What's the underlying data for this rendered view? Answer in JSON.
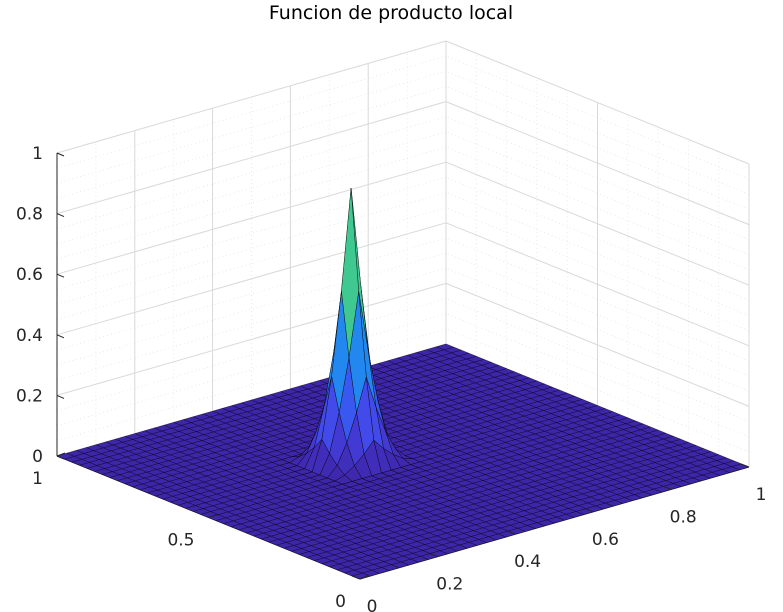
{
  "chart_data": {
    "type": "surface",
    "title": "Funcion de producto local",
    "xlabel": "",
    "ylabel": "",
    "zlabel": "",
    "xlim": [
      0,
      1
    ],
    "ylim": [
      0,
      1
    ],
    "zlim": [
      0,
      1
    ],
    "x_ticks": [
      "0",
      "0.2",
      "0.4",
      "0.6",
      "0.8",
      "1"
    ],
    "y_ticks": [
      "0",
      "0.5",
      "1"
    ],
    "z_ticks": [
      "0",
      "0.2",
      "0.4",
      "0.6",
      "0.8",
      "1"
    ],
    "grid": true,
    "colormap": "parula",
    "grid_resolution": 0.025,
    "surface_description": "z = 0 everywhere except a sharp pyramid-like peak centred near x = 0.425, y = 0.575, rising to about 0.9 and dropping to 0 within about 0.1 in each direction",
    "peak": {
      "x": 0.425,
      "y": 0.575,
      "z": 0.9,
      "half_width": 0.1
    },
    "colors": {
      "low": "#3e26a8",
      "mid": "#22b9c8",
      "high": "#f5b33a",
      "edge": "#000000"
    }
  }
}
